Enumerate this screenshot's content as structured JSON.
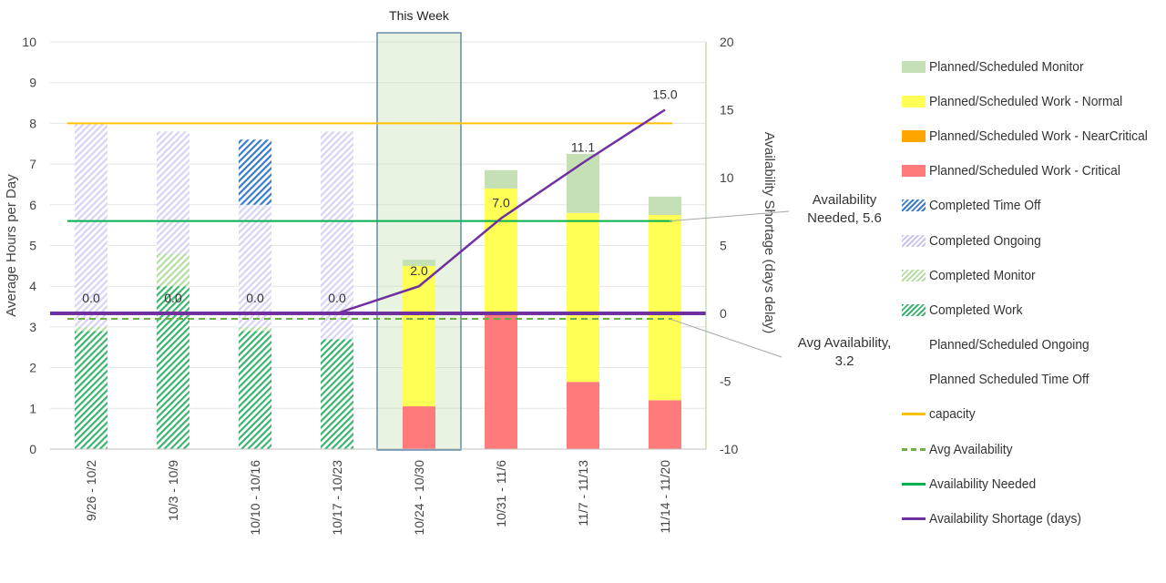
{
  "chart_data": {
    "type": "bar",
    "categories": [
      "9/26 - 10/2",
      "10/3 - 10/9",
      "10/10 - 10/16",
      "10/17 - 10/23",
      "10/24 - 10/30",
      "10/31 - 11/6",
      "11/7 - 11/13",
      "11/14 - 11/20"
    ],
    "highlight": {
      "category": "10/24 - 10/30",
      "label": "This Week"
    },
    "ylabel": "Average Hours per Day",
    "y2label": "Availability Shortage (days delay)",
    "ylim": [
      0,
      10
    ],
    "y2lim": [
      -10,
      20
    ],
    "yticks": [
      0,
      1,
      2,
      3,
      4,
      5,
      6,
      7,
      8,
      9,
      10
    ],
    "y2ticks": [
      -10,
      -5,
      0,
      5,
      10,
      15,
      20
    ],
    "grid": true,
    "legend_position": "right",
    "stacked_series": [
      {
        "name": "Completed Work",
        "color": "#3cb371",
        "pattern": "hatch",
        "values": [
          2.9,
          4.0,
          2.9,
          2.7,
          0,
          0,
          0,
          0
        ]
      },
      {
        "name": "Completed Monitor",
        "color": "#b5dca2",
        "pattern": "hatch",
        "values": [
          0.1,
          0.8,
          0.1,
          0,
          0,
          0,
          0,
          0
        ]
      },
      {
        "name": "Completed Ongoing",
        "color": "#c9c3f0",
        "pattern": "hatch",
        "values": [
          5.0,
          3.0,
          3.0,
          5.1,
          0,
          0,
          0,
          0
        ]
      },
      {
        "name": "Completed Time Off",
        "color": "#3a7cc9",
        "pattern": "hatch",
        "values": [
          0,
          0,
          1.6,
          0,
          0,
          0,
          0,
          0
        ]
      },
      {
        "name": "Planned/Scheduled Work - Critical",
        "color": "#ff7a7a",
        "pattern": "solid",
        "values": [
          0,
          0,
          0,
          0,
          1.05,
          3.3,
          1.65,
          1.2
        ]
      },
      {
        "name": "Planned/Scheduled Work - NearCritical",
        "color": "#ffa500",
        "pattern": "solid",
        "values": [
          0,
          0,
          0,
          0,
          0,
          0,
          0,
          0
        ]
      },
      {
        "name": "Planned/Scheduled Work - Normal",
        "color": "#ffff55",
        "pattern": "solid",
        "values": [
          0,
          0,
          0,
          0,
          3.45,
          3.1,
          4.15,
          4.55
        ]
      },
      {
        "name": "Planned/Scheduled Monitor",
        "color": "#c5e0b4",
        "pattern": "solid",
        "values": [
          0,
          0,
          0,
          0,
          0.15,
          0.45,
          1.45,
          0.45
        ]
      },
      {
        "name": "Planned/Scheduled Ongoing",
        "color": "#ffffff",
        "pattern": "none",
        "values": [
          0,
          0,
          0,
          0,
          0,
          0,
          0,
          0
        ]
      },
      {
        "name": "Planned Scheduled Time Off",
        "color": "#ffffff",
        "pattern": "none",
        "values": [
          0,
          0,
          0,
          0,
          0,
          0,
          0,
          0
        ]
      }
    ],
    "lines": [
      {
        "name": "capacity",
        "color": "#ffc000",
        "dash": false,
        "axis": "y",
        "values": [
          8,
          8,
          8,
          8,
          8,
          8,
          8,
          8
        ]
      },
      {
        "name": "Avg Availability",
        "color": "#70ad47",
        "dash": true,
        "axis": "y",
        "values": [
          3.2,
          3.2,
          3.2,
          3.2,
          3.2,
          3.2,
          3.2,
          3.2
        ]
      },
      {
        "name": "Availability Needed",
        "color": "#00b050",
        "dash": false,
        "axis": "y",
        "values": [
          5.6,
          5.6,
          5.6,
          5.6,
          5.6,
          5.6,
          5.6,
          5.6
        ]
      },
      {
        "name": "Availability Shortage (days)",
        "color": "#7030a0",
        "dash": false,
        "axis": "y2",
        "values": [
          0,
          0,
          0,
          0,
          2.0,
          7.0,
          11.1,
          15.0
        ],
        "labels": [
          "0.0",
          "0.0",
          "0.0",
          "0.0",
          "2.0",
          "7.0",
          "11.1",
          "15.0"
        ]
      }
    ],
    "legend_order": [
      "Planned/Scheduled Monitor",
      "Planned/Scheduled Work - Normal",
      "Planned/Scheduled Work - NearCritical",
      "Planned/Scheduled Work - Critical",
      "Completed Time Off",
      "Completed Ongoing",
      "Completed Monitor",
      "Completed Work",
      "Planned/Scheduled Ongoing",
      "Planned Scheduled Time Off",
      "capacity",
      "Avg Availability",
      "Availability Needed",
      "Availability Shortage (days)"
    ],
    "annotations": [
      {
        "id": "needed",
        "text_line1": "Availability",
        "text_line2": "Needed, 5.6"
      },
      {
        "id": "avg",
        "text_line1": "Avg Availability,",
        "text_line2": "3.2"
      }
    ]
  }
}
